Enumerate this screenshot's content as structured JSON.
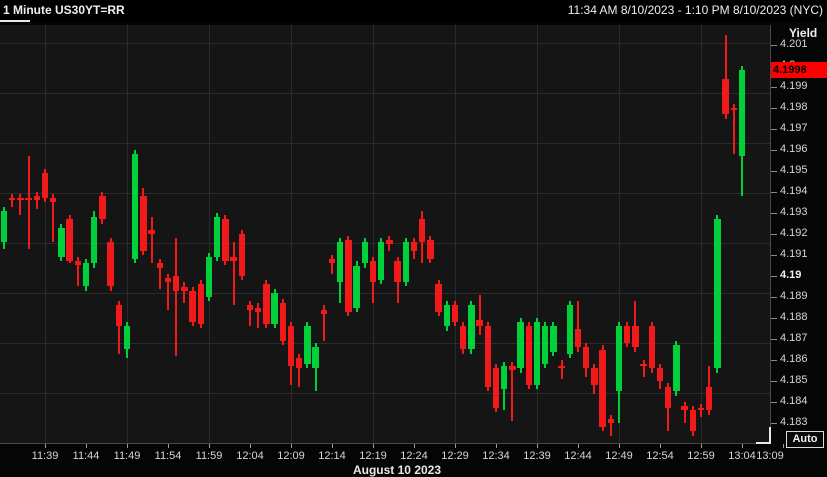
{
  "header": {
    "title": "1 Minute US30YT=RR",
    "time_range": "11:34 AM 8/10/2023 - 1:10 PM 8/10/2023 (NYC)"
  },
  "y_axis": {
    "title": "Yield",
    "auto_label": "Auto",
    "labels": [
      {
        "value": 4.201,
        "text": "4.201",
        "bold": false
      },
      {
        "value": 4.2,
        "text": "4.2",
        "bold": false
      },
      {
        "value": 4.199,
        "text": "4.199",
        "bold": false
      },
      {
        "value": 4.198,
        "text": "4.198",
        "bold": false
      },
      {
        "value": 4.197,
        "text": "4.197",
        "bold": false
      },
      {
        "value": 4.196,
        "text": "4.196",
        "bold": false
      },
      {
        "value": 4.195,
        "text": "4.195",
        "bold": false
      },
      {
        "value": 4.194,
        "text": "4.194",
        "bold": false
      },
      {
        "value": 4.193,
        "text": "4.193",
        "bold": false
      },
      {
        "value": 4.192,
        "text": "4.192",
        "bold": false
      },
      {
        "value": 4.191,
        "text": "4.191",
        "bold": false
      },
      {
        "value": 4.19,
        "text": "4.19",
        "bold": true
      },
      {
        "value": 4.189,
        "text": "4.189",
        "bold": false
      },
      {
        "value": 4.188,
        "text": "4.188",
        "bold": false
      },
      {
        "value": 4.187,
        "text": "4.187",
        "bold": false
      },
      {
        "value": 4.186,
        "text": "4.186",
        "bold": false
      },
      {
        "value": 4.185,
        "text": "4.185",
        "bold": false
      },
      {
        "value": 4.184,
        "text": "4.184",
        "bold": false
      },
      {
        "value": 4.183,
        "text": "4.183",
        "bold": false
      }
    ]
  },
  "x_axis": {
    "date_label": "August 10 2023",
    "labels": [
      "11:39",
      "11:44",
      "11:49",
      "11:54",
      "11:59",
      "12:04",
      "12:09",
      "12:14",
      "12:19",
      "12:24",
      "12:29",
      "12:34",
      "12:39",
      "12:44",
      "12:49",
      "12:54",
      "12:59",
      "13:04",
      "13:09"
    ]
  },
  "price_marker": {
    "text": "4.1998",
    "value": 4.1998,
    "bg": "#ff0000",
    "fg": "#000000"
  },
  "colors": {
    "up": "#00d13a",
    "down": "#f01a1a",
    "grid": "#2b2b2b",
    "plot_bg": "#151515",
    "page_bg": "#050505",
    "axis_text": "#d6d6d6",
    "axis_line": "#4a4a4a",
    "marker_bg": "#ff0000"
  },
  "chart_data": {
    "type": "candlestick",
    "title": "1 Minute US30YT=RR",
    "instrument": "US30YT=RR",
    "interval": "1 minute",
    "ylabel": "Yield",
    "ylim": [
      4.1815,
      4.202
    ],
    "x_range": [
      "11:34",
      "13:10"
    ],
    "grid": true,
    "last_price": 4.1998,
    "candle_format": [
      "time",
      "open",
      "high",
      "low",
      "close"
    ],
    "candles": [
      [
        "11:34",
        4.1916,
        4.1933,
        4.1913,
        4.1931
      ],
      [
        "11:35",
        4.1937,
        4.1939,
        4.1933,
        4.1936
      ],
      [
        "11:36",
        4.1937,
        4.1939,
        4.1929,
        4.1936
      ],
      [
        "11:37",
        4.1937,
        4.1957,
        4.1913,
        4.1936
      ],
      [
        "11:38",
        4.1938,
        4.194,
        4.1932,
        4.1936
      ],
      [
        "11:39",
        4.1949,
        4.1951,
        4.1935,
        4.1937
      ],
      [
        "11:40",
        4.1937,
        4.1939,
        4.1916,
        4.1935
      ],
      [
        "11:41",
        4.1909,
        4.1925,
        4.1907,
        4.1923
      ],
      [
        "11:42",
        4.1927,
        4.1929,
        4.1906,
        4.1907
      ],
      [
        "11:43",
        4.1907,
        4.1909,
        4.1895,
        4.1905
      ],
      [
        "11:44",
        4.1895,
        4.1908,
        4.1893,
        4.1906
      ],
      [
        "11:45",
        4.1906,
        4.1931,
        4.1904,
        4.1928
      ],
      [
        "11:46",
        4.1938,
        4.194,
        4.1925,
        4.1927
      ],
      [
        "11:47",
        4.1916,
        4.1918,
        4.1893,
        4.1895
      ],
      [
        "11:48",
        4.1886,
        4.1888,
        4.1863,
        4.1876
      ],
      [
        "11:49",
        4.1865,
        4.1878,
        4.1861,
        4.1876
      ],
      [
        "11:50",
        4.1908,
        4.196,
        4.1906,
        4.1958
      ],
      [
        "11:51",
        4.1938,
        4.1942,
        4.191,
        4.1912
      ],
      [
        "11:52",
        4.1922,
        4.1928,
        4.1906,
        4.192
      ],
      [
        "11:53",
        4.1906,
        4.1908,
        4.1894,
        4.1904
      ],
      [
        "11:54",
        4.1899,
        4.1901,
        4.1884,
        4.1897
      ],
      [
        "11:55",
        4.19,
        4.1918,
        4.1862,
        4.1893
      ],
      [
        "11:56",
        4.1895,
        4.1897,
        4.1887,
        4.1893
      ],
      [
        "11:57",
        4.1893,
        4.1895,
        4.1876,
        4.1878
      ],
      [
        "11:58",
        4.1896,
        4.1898,
        4.1875,
        4.1877
      ],
      [
        "11:59",
        4.189,
        4.1911,
        4.1888,
        4.1909
      ],
      [
        "12:00",
        4.1909,
        4.193,
        4.1907,
        4.1928
      ],
      [
        "12:01",
        4.1927,
        4.1929,
        4.1905,
        4.1907
      ],
      [
        "12:02",
        4.1909,
        4.1916,
        4.1886,
        4.1907
      ],
      [
        "12:03",
        4.192,
        4.1922,
        4.1898,
        4.19
      ],
      [
        "12:04",
        4.1886,
        4.1888,
        4.1876,
        4.1884
      ],
      [
        "12:05",
        4.1885,
        4.1887,
        4.1875,
        4.1883
      ],
      [
        "12:06",
        4.1896,
        4.1898,
        4.1875,
        4.1877
      ],
      [
        "12:07",
        4.1877,
        4.1894,
        4.1875,
        4.1892
      ],
      [
        "12:08",
        4.1887,
        4.1889,
        4.1867,
        4.1869
      ],
      [
        "12:09",
        4.1876,
        4.1878,
        4.1848,
        4.1857
      ],
      [
        "12:10",
        4.1861,
        4.1863,
        4.1847,
        4.1856
      ],
      [
        "12:11",
        4.1858,
        4.1878,
        4.1856,
        4.1876
      ],
      [
        "12:12",
        4.1856,
        4.1868,
        4.1845,
        4.1866
      ],
      [
        "12:13",
        4.1884,
        4.1886,
        4.1869,
        4.1882
      ],
      [
        "12:14",
        4.1908,
        4.191,
        4.1901,
        4.1906
      ],
      [
        "12:15",
        4.1897,
        4.1918,
        4.1887,
        4.1916
      ],
      [
        "12:16",
        4.1917,
        4.1919,
        4.1881,
        4.1883
      ],
      [
        "12:17",
        4.1885,
        4.1907,
        4.1883,
        4.1905
      ],
      [
        "12:18",
        4.1906,
        4.1918,
        4.1904,
        4.1916
      ],
      [
        "12:19",
        4.1907,
        4.1909,
        4.1887,
        4.1897
      ],
      [
        "12:20",
        4.1898,
        4.1918,
        4.1896,
        4.1916
      ],
      [
        "12:21",
        4.1917,
        4.1919,
        4.1912,
        4.1915
      ],
      [
        "12:22",
        4.1907,
        4.1909,
        4.1887,
        4.1897
      ],
      [
        "12:23",
        4.1897,
        4.1918,
        4.1895,
        4.1916
      ],
      [
        "12:24",
        4.1916,
        4.1918,
        4.1908,
        4.1912
      ],
      [
        "12:25",
        4.1927,
        4.1931,
        4.1906,
        4.1916
      ],
      [
        "12:26",
        4.1917,
        4.1919,
        4.1906,
        4.1908
      ],
      [
        "12:27",
        4.1896,
        4.1898,
        4.1881,
        4.1883
      ],
      [
        "12:28",
        4.1876,
        4.1888,
        4.1874,
        4.1886
      ],
      [
        "12:29",
        4.1886,
        4.1888,
        4.1876,
        4.1878
      ],
      [
        "12:30",
        4.1876,
        4.1878,
        4.1863,
        4.1865
      ],
      [
        "12:31",
        4.1865,
        4.1888,
        4.1863,
        4.1886
      ],
      [
        "12:32",
        4.1879,
        4.1891,
        4.1872,
        4.1876
      ],
      [
        "12:33",
        4.1876,
        4.1878,
        4.1845,
        4.1847
      ],
      [
        "12:34",
        4.1856,
        4.1858,
        4.1835,
        4.1837
      ],
      [
        "12:35",
        4.1846,
        4.1859,
        4.1836,
        4.1857
      ],
      [
        "12:36",
        4.1857,
        4.1859,
        4.1831,
        4.1855
      ],
      [
        "12:37",
        4.1856,
        4.188,
        4.1854,
        4.1878
      ],
      [
        "12:38",
        4.1876,
        4.1878,
        4.1846,
        4.1848
      ],
      [
        "12:39",
        4.1848,
        4.188,
        4.1846,
        4.1878
      ],
      [
        "12:40",
        4.1858,
        4.1878,
        4.1856,
        4.1876
      ],
      [
        "12:41",
        4.1864,
        4.1878,
        4.1862,
        4.1876
      ],
      [
        "12:42",
        4.1857,
        4.186,
        4.1851,
        4.1856
      ],
      [
        "12:43",
        4.1863,
        4.1888,
        4.1861,
        4.1886
      ],
      [
        "12:44",
        4.1875,
        4.1888,
        4.1864,
        4.1866
      ],
      [
        "12:45",
        4.1866,
        4.1868,
        4.1852,
        4.1856
      ],
      [
        "12:46",
        4.1856,
        4.1858,
        4.1844,
        4.1848
      ],
      [
        "12:47",
        4.1865,
        4.1867,
        4.1826,
        4.1828
      ],
      [
        "12:48",
        4.1832,
        4.1834,
        4.1824,
        4.183
      ],
      [
        "12:49",
        4.1845,
        4.1878,
        4.183,
        4.1876
      ],
      [
        "12:50",
        4.1876,
        4.1878,
        4.1866,
        4.1868
      ],
      [
        "12:51",
        4.1876,
        4.1888,
        4.1864,
        4.1866
      ],
      [
        "12:52",
        4.1858,
        4.186,
        4.1852,
        4.1857
      ],
      [
        "12:53",
        4.1876,
        4.1878,
        4.1854,
        4.1856
      ],
      [
        "12:54",
        4.1856,
        4.1858,
        4.1846,
        4.185
      ],
      [
        "12:55",
        4.1847,
        4.1849,
        4.1826,
        4.1837
      ],
      [
        "12:56",
        4.1845,
        4.1869,
        4.1843,
        4.1867
      ],
      [
        "12:57",
        4.1838,
        4.184,
        4.183,
        4.1836
      ],
      [
        "12:58",
        4.1836,
        4.1838,
        4.1824,
        4.1826
      ],
      [
        "12:59",
        4.1837,
        4.1839,
        4.1833,
        4.1836
      ],
      [
        "13:00",
        4.1847,
        4.1857,
        4.1834,
        4.1836
      ],
      [
        "13:01",
        4.1856,
        4.1929,
        4.1854,
        4.1927
      ],
      [
        "13:02",
        4.1994,
        4.2015,
        4.1975,
        4.1977
      ],
      [
        "13:03",
        4.198,
        4.1982,
        4.1958,
        4.1979
      ],
      [
        "13:04",
        4.1957,
        4.2,
        4.1938,
        4.1998
      ]
    ]
  }
}
